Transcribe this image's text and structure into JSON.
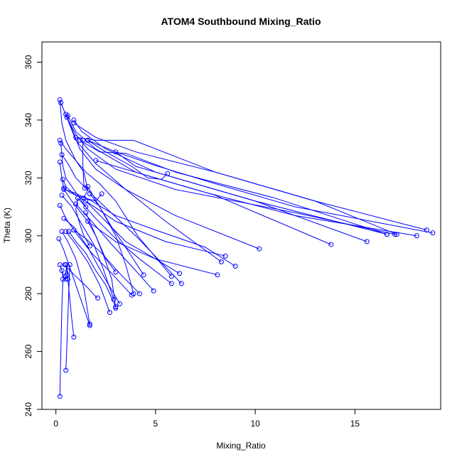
{
  "chart_data": {
    "type": "scatter",
    "title": "ATOM4 Southbound Mixing_Ratio",
    "xlabel": "Mixing_Ratio",
    "ylabel": "Theta (K)",
    "xlim": [
      -0.7,
      19.3
    ],
    "ylim": [
      240,
      367
    ],
    "x_ticks": [
      0,
      5,
      10,
      15
    ],
    "y_ticks": [
      240,
      260,
      280,
      300,
      320,
      340,
      360
    ],
    "grid": false,
    "color": "#0000ff",
    "series": [
      {
        "x": [
          0.2,
          0.3,
          0.5,
          1.0,
          1.5,
          2.2,
          3.0,
          4.1,
          5.8
        ],
        "y": [
          347,
          339,
          333,
          326,
          322,
          318,
          312,
          300,
          286
        ]
      },
      {
        "x": [
          0.25,
          0.6,
          1.0,
          2.0,
          3.5,
          5.5,
          8.3
        ],
        "y": [
          346,
          340,
          333,
          325,
          316,
          305,
          291
        ]
      },
      {
        "x": [
          0.5,
          0.8,
          1.2,
          2.0,
          3.5,
          6.0,
          10.2
        ],
        "y": [
          342,
          337,
          330,
          323,
          316,
          307,
          295.5
        ]
      },
      {
        "x": [
          0.55,
          1.0,
          1.6,
          3.0,
          6.0,
          12.0,
          17.0
        ],
        "y": [
          341,
          335,
          330,
          323,
          316,
          308,
          300.5
        ]
      },
      {
        "x": [
          0.6,
          1.0,
          2.0,
          4.0,
          8.0,
          13.8
        ],
        "y": [
          341.5,
          336,
          330,
          322,
          314,
          297
        ]
      },
      {
        "x": [
          0.9,
          1.3,
          2.5,
          5.0,
          10.0,
          15.6
        ],
        "y": [
          340,
          336,
          330,
          322,
          312,
          298
        ]
      },
      {
        "x": [
          0.9,
          2.0,
          4.0,
          8.0,
          13.0,
          17.1
        ],
        "y": [
          339,
          334,
          329,
          322,
          312,
          300.5
        ]
      },
      {
        "x": [
          1.0,
          2.0,
          3.9,
          8.0,
          13.0,
          18.6
        ],
        "y": [
          334,
          333,
          333,
          322,
          312,
          302
        ]
      },
      {
        "x": [
          1.2,
          2.2,
          3.5,
          6.0,
          11.0,
          16.6
        ],
        "y": [
          333,
          329,
          328.5,
          322,
          313,
          300.5
        ]
      },
      {
        "x": [
          1.6,
          3.0,
          4.0,
          6.0,
          10.0,
          16.6
        ],
        "y": [
          333,
          329,
          324,
          320,
          312,
          300.5
        ]
      },
      {
        "x": [
          2.0,
          4.5,
          7.5,
          12.0,
          18.1
        ],
        "y": [
          326,
          321,
          315,
          307,
          300
        ]
      },
      {
        "x": [
          3.0,
          4.9,
          8.0,
          12.0,
          18.9
        ],
        "y": [
          329,
          324.5,
          318,
          310,
          301
        ]
      },
      {
        "x": [
          1.6,
          2.5,
          3.8,
          4.6,
          5.3,
          5.6
        ],
        "y": [
          333,
          329,
          324,
          320,
          319.5,
          321.5
        ]
      },
      {
        "x": [
          0.2,
          0.5,
          1.0,
          1.4,
          1.6,
          1.4
        ],
        "y": [
          333,
          330,
          326,
          322,
          316,
          313
        ]
      },
      {
        "x": [
          0.25,
          0.3,
          0.35,
          0.5,
          0.9,
          1.5
        ],
        "y": [
          332,
          328,
          324,
          320,
          316,
          310
        ]
      },
      {
        "x": [
          0.3,
          0.35,
          0.4,
          0.6,
          1.0,
          2.0,
          4.0,
          6.3
        ],
        "y": [
          328,
          327.5,
          327,
          325,
          320,
          313,
          300,
          283.5
        ]
      },
      {
        "x": [
          0.2,
          0.3,
          0.4,
          0.8,
          1.6,
          3.0,
          5.0,
          8.1
        ],
        "y": [
          325.5,
          320,
          316,
          312,
          305,
          298,
          292,
          286.5
        ]
      },
      {
        "x": [
          0.35,
          0.5,
          0.8,
          1.5,
          3.0,
          5.5,
          8.5
        ],
        "y": [
          319.5,
          317,
          315,
          312,
          305,
          298,
          293
        ]
      },
      {
        "x": [
          0.4,
          0.7,
          1.0,
          1.5,
          2.0,
          2.3
        ],
        "y": [
          316.5,
          315,
          314,
          313,
          312,
          314.5
        ]
      },
      {
        "x": [
          0.4,
          0.9,
          1.8,
          3.0,
          5.0,
          7.5,
          9.0
        ],
        "y": [
          316,
          315,
          312,
          307,
          302,
          296,
          289.5
        ]
      },
      {
        "x": [
          0.3,
          0.8,
          1.3,
          1.9,
          2.4,
          2.9
        ],
        "y": [
          314,
          310,
          304,
          297,
          288,
          278
        ]
      },
      {
        "x": [
          0.2,
          0.5,
          1.0,
          1.8,
          2.8,
          3.8
        ],
        "y": [
          310.5,
          306,
          301,
          294,
          287,
          279.5
        ]
      },
      {
        "x": [
          0.4,
          0.9,
          1.6,
          2.4,
          3.2
        ],
        "y": [
          306,
          303,
          296,
          286,
          276.5
        ]
      },
      {
        "x": [
          0.3,
          0.6,
          1.0,
          1.4,
          1.7
        ],
        "y": [
          301.5,
          298,
          292,
          282,
          269.5
        ]
      },
      {
        "x": [
          0.15,
          0.4,
          0.7,
          1.2,
          1.7
        ],
        "y": [
          299,
          295,
          289,
          279,
          269
        ]
      },
      {
        "x": [
          0.5,
          1.0,
          1.6,
          2.2,
          2.7
        ],
        "y": [
          301.5,
          297,
          291,
          283,
          273.5
        ]
      },
      {
        "x": [
          0.65,
          1.0,
          1.5,
          2.0,
          2.5,
          3.0
        ],
        "y": [
          301.5,
          298,
          294,
          288,
          283,
          275.5
        ]
      },
      {
        "x": [
          0.9,
          1.5,
          2.3,
          3.2,
          4.2
        ],
        "y": [
          302,
          299,
          294,
          287,
          280
        ]
      },
      {
        "x": [
          1.0,
          1.8,
          2.8,
          4.0,
          4.9
        ],
        "y": [
          311,
          305,
          297,
          288,
          281
        ]
      },
      {
        "x": [
          1.1,
          2.0,
          3.0,
          4.2,
          5.8
        ],
        "y": [
          313,
          306,
          299,
          292,
          283.5
        ]
      },
      {
        "x": [
          1.5,
          2.5,
          3.5,
          5.0,
          6.2
        ],
        "y": [
          312,
          305,
          298,
          292,
          287
        ]
      },
      {
        "x": [
          1.7,
          2.2,
          2.8,
          3.5,
          4.4
        ],
        "y": [
          314.5,
          310,
          303,
          296,
          286.5
        ]
      },
      {
        "x": [
          1.6,
          2.2,
          3.0,
          3.5,
          3.9
        ],
        "y": [
          317,
          310,
          300,
          290,
          280
        ]
      },
      {
        "x": [
          1.5,
          2.0,
          2.5,
          3.0
        ],
        "y": [
          308,
          300,
          292,
          287.5
        ]
      },
      {
        "x": [
          1.7,
          1.4,
          1.2,
          1.0,
          1.1
        ],
        "y": [
          296.5,
          300,
          304,
          309,
          313
        ]
      },
      {
        "x": [
          1.6,
          2.0,
          2.4,
          2.8,
          3.0
        ],
        "y": [
          305,
          300,
          293,
          285,
          275
        ]
      },
      {
        "x": [
          0.45,
          0.7,
          1.0,
          1.3,
          1.6,
          2.0,
          2.1
        ],
        "y": [
          290,
          288,
          286,
          284,
          282,
          279,
          278.5
        ]
      },
      {
        "x": [
          0.2,
          0.3,
          0.4,
          0.5
        ],
        "y": [
          290,
          288,
          285.5,
          285
        ]
      },
      {
        "x": [
          0.3,
          0.35,
          0.4,
          0.5,
          0.6
        ],
        "y": [
          288,
          286,
          285,
          285.5,
          285
        ]
      },
      {
        "x": [
          0.2,
          0.25,
          0.3,
          0.35
        ],
        "y": [
          244.5,
          260,
          275,
          285
        ]
      },
      {
        "x": [
          0.5,
          0.55,
          0.6,
          0.65,
          0.7
        ],
        "y": [
          253.5,
          262,
          272,
          282,
          290
        ]
      },
      {
        "x": [
          0.9,
          0.8,
          0.7,
          0.6,
          0.5
        ],
        "y": [
          265,
          271,
          278,
          285,
          290
        ]
      },
      {
        "x": [
          0.45,
          0.5,
          0.55,
          0.6,
          0.55
        ],
        "y": [
          286,
          288,
          289,
          287,
          286.5
        ]
      },
      {
        "x": [
          1.35,
          1.35,
          1.4,
          1.45
        ],
        "y": [
          333,
          325,
          318,
          316.5
        ]
      }
    ]
  }
}
